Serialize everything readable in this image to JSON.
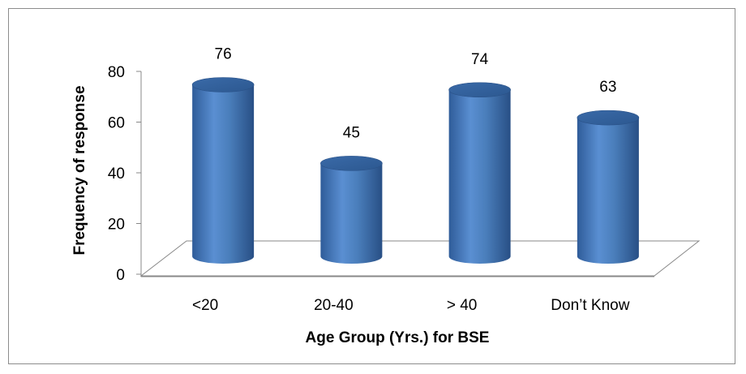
{
  "chart_data": {
    "type": "bar",
    "title": "",
    "xlabel": "Age Group (Yrs.) for BSE",
    "ylabel": "Frequency of response",
    "categories": [
      "<20",
      "20-40",
      "> 40",
      "Don’t Know"
    ],
    "values": [
      76,
      45,
      74,
      63
    ],
    "data_labels": [
      "76",
      "45",
      "74",
      "63"
    ],
    "ylim": [
      0,
      80
    ],
    "yticks": [
      "0",
      "20",
      "40",
      "60",
      "80"
    ],
    "grid": false,
    "legend": "none",
    "style": "3d-cylinder",
    "bar_color": "#4a7ebb"
  }
}
